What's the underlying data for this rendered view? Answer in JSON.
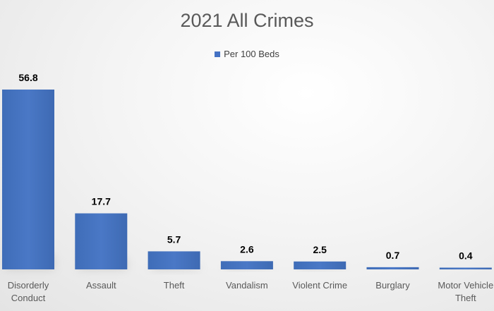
{
  "chart_data": {
    "type": "bar",
    "title": "2021 All Crimes",
    "xlabel": "",
    "ylabel": "",
    "categories": [
      "Disorderly Conduct",
      "Assault",
      "Theft",
      "Vandalism",
      "Violent Crime",
      "Burglary",
      "Motor Vehicle Theft"
    ],
    "series": [
      {
        "name": "Per 100 Beds",
        "values": [
          56.8,
          17.7,
          5.7,
          2.6,
          2.5,
          0.7,
          0.4
        ],
        "color": "#4472c4"
      }
    ],
    "data_labels": [
      "56.8",
      "17.7",
      "5.7",
      "2.6",
      "2.5",
      "0.7",
      "0.4"
    ],
    "ylim": [
      0,
      56.8
    ],
    "grid": false,
    "legend_position": "top"
  }
}
